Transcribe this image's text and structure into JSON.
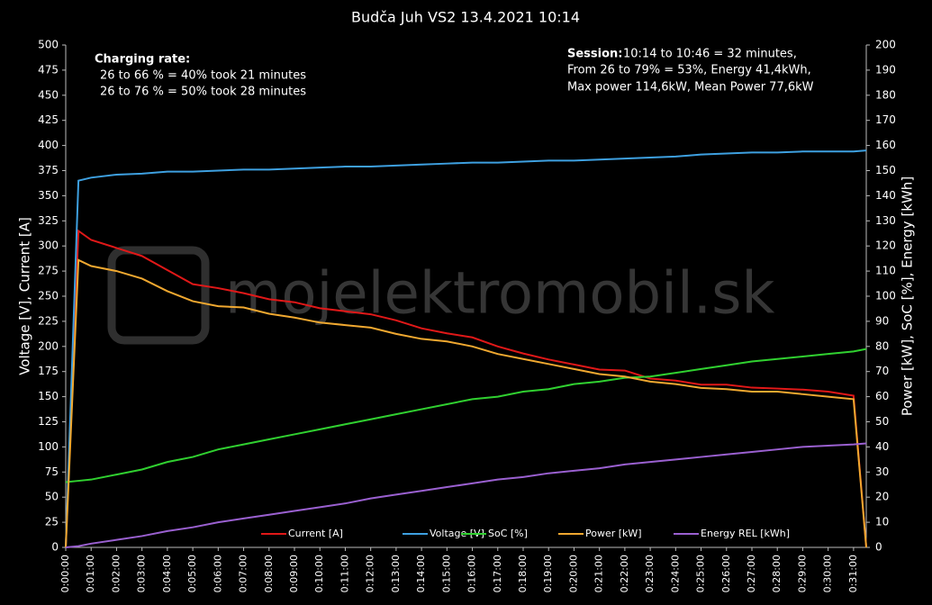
{
  "chart_data": {
    "type": "line",
    "title": "Budča Juh VS2 13.4.2021 10:14",
    "y_label": "Voltage [V], Current [A]",
    "y2_label": "Power [kW], SoC [%], Energy [kWh]",
    "watermark": "mojelektromobil.sk",
    "annotations": {
      "left": {
        "heading": "Charging rate:",
        "lines": [
          "26 to 66 % = 40% took 21 minutes",
          "26 to 76 % = 50% took 28 minutes"
        ]
      },
      "right": {
        "heading": "Session:",
        "first": "10:14 to 10:46 = 32 minutes,",
        "lines": [
          "From 26 to 79% = 53%, Energy 41,4kWh,",
          "Max power 114,6kW, Mean Power  77,6kW"
        ]
      }
    },
    "legend": "bottom",
    "x": [
      0,
      0.5,
      1,
      2,
      3,
      4,
      5,
      6,
      7,
      8,
      9,
      10,
      11,
      12,
      13,
      14,
      15,
      16,
      17,
      18,
      19,
      20,
      21,
      22,
      23,
      24,
      25,
      26,
      27,
      28,
      29,
      30,
      31,
      31.5
    ],
    "xlim": [
      0,
      31.5
    ],
    "xticks": [
      {
        "value": 0,
        "label": "0:00:00"
      },
      {
        "value": 1,
        "label": "0:01:00"
      },
      {
        "value": 2,
        "label": "0:02:00"
      },
      {
        "value": 3,
        "label": "0:03:00"
      },
      {
        "value": 4,
        "label": "0:04:00"
      },
      {
        "value": 5,
        "label": "0:05:00"
      },
      {
        "value": 6,
        "label": "0:06:00"
      },
      {
        "value": 7,
        "label": "0:07:00"
      },
      {
        "value": 8,
        "label": "0:08:00"
      },
      {
        "value": 9,
        "label": "0:09:00"
      },
      {
        "value": 10,
        "label": "0:10:00"
      },
      {
        "value": 11,
        "label": "0:11:00"
      },
      {
        "value": 12,
        "label": "0:12:00"
      },
      {
        "value": 13,
        "label": "0:13:00"
      },
      {
        "value": 14,
        "label": "0:14:00"
      },
      {
        "value": 15,
        "label": "0:15:00"
      },
      {
        "value": 16,
        "label": "0:16:00"
      },
      {
        "value": 17,
        "label": "0:17:00"
      },
      {
        "value": 18,
        "label": "0:18:00"
      },
      {
        "value": 19,
        "label": "0:19:00"
      },
      {
        "value": 20,
        "label": "0:20:00"
      },
      {
        "value": 21,
        "label": "0:21:00"
      },
      {
        "value": 22,
        "label": "0:22:00"
      },
      {
        "value": 23,
        "label": "0:23:00"
      },
      {
        "value": 24,
        "label": "0:24:00"
      },
      {
        "value": 25,
        "label": "0:25:00"
      },
      {
        "value": 26,
        "label": "0:26:00"
      },
      {
        "value": 27,
        "label": "0:27:00"
      },
      {
        "value": 28,
        "label": "0:28:00"
      },
      {
        "value": 29,
        "label": "0:29:00"
      },
      {
        "value": 30,
        "label": "0:30:00"
      },
      {
        "value": 31,
        "label": "0:31:00"
      }
    ],
    "ylim": [
      0,
      500
    ],
    "yticks": [
      0,
      25,
      50,
      75,
      100,
      125,
      150,
      175,
      200,
      225,
      250,
      275,
      300,
      325,
      350,
      375,
      400,
      425,
      450,
      475,
      500
    ],
    "y2lim": [
      0,
      200
    ],
    "y2ticks": [
      0,
      10,
      20,
      30,
      40,
      50,
      60,
      70,
      80,
      90,
      100,
      110,
      120,
      130,
      140,
      150,
      160,
      170,
      180,
      190,
      200
    ],
    "series": [
      {
        "name": "Current [A]",
        "color": "#e01818",
        "values": [
          0,
          315,
          306,
          298,
          290,
          276,
          262,
          258,
          253,
          247,
          244,
          238,
          235,
          232,
          226,
          218,
          213,
          209,
          200,
          193,
          187,
          182,
          177,
          176,
          168,
          166,
          162,
          162,
          159,
          158,
          157,
          155,
          151,
          0
        ]
      },
      {
        "name": "Voltage [V]",
        "color": "#3ea0e0",
        "values": [
          0,
          365,
          368,
          371,
          372,
          374,
          374,
          375,
          376,
          376,
          377,
          378,
          379,
          379,
          380,
          381,
          382,
          383,
          383,
          384,
          385,
          385,
          386,
          387,
          388,
          389,
          391,
          392,
          393,
          393,
          394,
          394,
          394,
          395
        ]
      },
      {
        "name": "SoC [%]",
        "color": "#30d030",
        "axis": "y2",
        "values": [
          26,
          26.5,
          27,
          29,
          31,
          34,
          36,
          39,
          41,
          43,
          45,
          47,
          49,
          51,
          53,
          55,
          57,
          59,
          60,
          62,
          63,
          65,
          66,
          67.5,
          68,
          69.5,
          71,
          72.5,
          74,
          75,
          76,
          77,
          78,
          79
        ]
      },
      {
        "name": "Power [kW]",
        "color": "#f0a830",
        "axis": "y2",
        "values": [
          0,
          114.4,
          112,
          110,
          107,
          102,
          98,
          96,
          95.5,
          93,
          91.5,
          89.5,
          88.5,
          87.5,
          85,
          83,
          82,
          80,
          77,
          75,
          73,
          71,
          69,
          68,
          66,
          65,
          63.5,
          63,
          62,
          62,
          61,
          60,
          59,
          0
        ]
      },
      {
        "name": "Energy REL [kWh]",
        "color": "#9a60d0",
        "axis": "y2",
        "values": [
          0,
          0.5,
          1.5,
          3,
          4.5,
          6.5,
          8,
          10,
          11.5,
          13,
          14.5,
          16,
          17.5,
          19.5,
          21,
          22.5,
          24,
          25.5,
          27,
          28,
          29.5,
          30.5,
          31.5,
          33,
          34,
          35,
          36,
          37,
          38,
          39,
          40,
          40.5,
          41,
          41.4
        ]
      }
    ]
  }
}
